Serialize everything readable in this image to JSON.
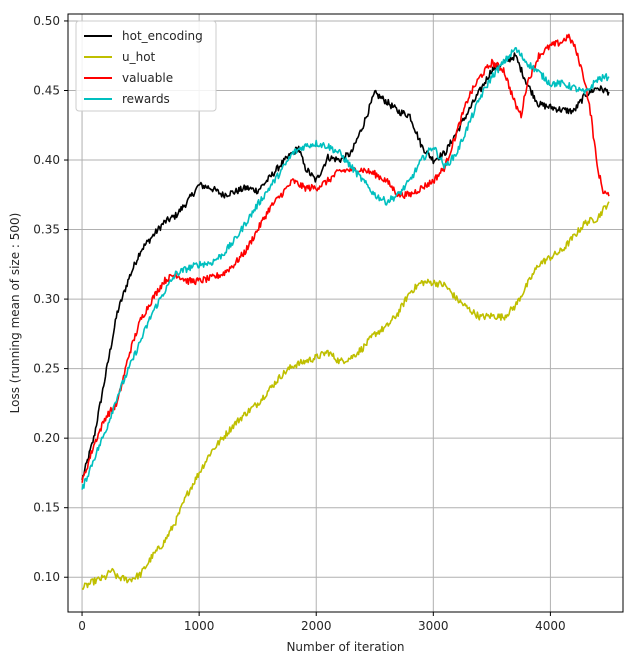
{
  "chart_data": {
    "type": "line",
    "title": "",
    "xlabel": "Number of iteration",
    "ylabel": "Loss (running mean of size : 500)",
    "xlim": [
      -120,
      4620
    ],
    "ylim": [
      0.075,
      0.505
    ],
    "xticks": [
      0,
      1000,
      2000,
      3000,
      4000
    ],
    "yticks": [
      0.1,
      0.15,
      0.2,
      0.25,
      0.3,
      0.35,
      0.4,
      0.45,
      0.5
    ],
    "grid": true,
    "legend_position": "top-left",
    "series": [
      {
        "name": "hot_encoding",
        "color": "#000000",
        "points": [
          [
            0,
            0.17
          ],
          [
            100,
            0.2
          ],
          [
            200,
            0.245
          ],
          [
            300,
            0.29
          ],
          [
            400,
            0.315
          ],
          [
            500,
            0.335
          ],
          [
            600,
            0.345
          ],
          [
            700,
            0.355
          ],
          [
            800,
            0.36
          ],
          [
            900,
            0.37
          ],
          [
            1000,
            0.382
          ],
          [
            1100,
            0.38
          ],
          [
            1200,
            0.375
          ],
          [
            1300,
            0.377
          ],
          [
            1400,
            0.38
          ],
          [
            1500,
            0.378
          ],
          [
            1600,
            0.387
          ],
          [
            1700,
            0.397
          ],
          [
            1800,
            0.405
          ],
          [
            1850,
            0.409
          ],
          [
            1900,
            0.395
          ],
          [
            2000,
            0.385
          ],
          [
            2100,
            0.402
          ],
          [
            2200,
            0.4
          ],
          [
            2300,
            0.405
          ],
          [
            2400,
            0.425
          ],
          [
            2500,
            0.448
          ],
          [
            2600,
            0.442
          ],
          [
            2700,
            0.435
          ],
          [
            2800,
            0.432
          ],
          [
            2900,
            0.41
          ],
          [
            3000,
            0.4
          ],
          [
            3100,
            0.405
          ],
          [
            3200,
            0.42
          ],
          [
            3300,
            0.435
          ],
          [
            3400,
            0.45
          ],
          [
            3500,
            0.465
          ],
          [
            3600,
            0.47
          ],
          [
            3700,
            0.475
          ],
          [
            3800,
            0.455
          ],
          [
            3900,
            0.44
          ],
          [
            4000,
            0.438
          ],
          [
            4100,
            0.436
          ],
          [
            4200,
            0.435
          ],
          [
            4300,
            0.447
          ],
          [
            4400,
            0.452
          ],
          [
            4500,
            0.449
          ]
        ]
      },
      {
        "name": "u_hot",
        "color": "#bfbf00",
        "points": [
          [
            0,
            0.092
          ],
          [
            100,
            0.097
          ],
          [
            200,
            0.1
          ],
          [
            250,
            0.105
          ],
          [
            300,
            0.1
          ],
          [
            400,
            0.098
          ],
          [
            500,
            0.102
          ],
          [
            600,
            0.115
          ],
          [
            700,
            0.125
          ],
          [
            800,
            0.14
          ],
          [
            900,
            0.16
          ],
          [
            1000,
            0.175
          ],
          [
            1100,
            0.19
          ],
          [
            1200,
            0.2
          ],
          [
            1300,
            0.21
          ],
          [
            1400,
            0.218
          ],
          [
            1500,
            0.225
          ],
          [
            1600,
            0.235
          ],
          [
            1700,
            0.245
          ],
          [
            1800,
            0.252
          ],
          [
            1900,
            0.255
          ],
          [
            2000,
            0.258
          ],
          [
            2100,
            0.262
          ],
          [
            2200,
            0.255
          ],
          [
            2300,
            0.258
          ],
          [
            2400,
            0.265
          ],
          [
            2500,
            0.275
          ],
          [
            2600,
            0.28
          ],
          [
            2700,
            0.29
          ],
          [
            2800,
            0.305
          ],
          [
            2900,
            0.312
          ],
          [
            3000,
            0.312
          ],
          [
            3100,
            0.31
          ],
          [
            3200,
            0.3
          ],
          [
            3300,
            0.293
          ],
          [
            3400,
            0.287
          ],
          [
            3500,
            0.288
          ],
          [
            3600,
            0.287
          ],
          [
            3700,
            0.295
          ],
          [
            3800,
            0.31
          ],
          [
            3900,
            0.325
          ],
          [
            4000,
            0.33
          ],
          [
            4100,
            0.335
          ],
          [
            4200,
            0.345
          ],
          [
            4300,
            0.355
          ],
          [
            4400,
            0.358
          ],
          [
            4500,
            0.37
          ]
        ]
      },
      {
        "name": "valuable",
        "color": "#ff0000",
        "points": [
          [
            0,
            0.168
          ],
          [
            100,
            0.195
          ],
          [
            200,
            0.215
          ],
          [
            300,
            0.225
          ],
          [
            400,
            0.26
          ],
          [
            500,
            0.285
          ],
          [
            600,
            0.3
          ],
          [
            700,
            0.313
          ],
          [
            800,
            0.318
          ],
          [
            900,
            0.313
          ],
          [
            1000,
            0.313
          ],
          [
            1100,
            0.315
          ],
          [
            1200,
            0.318
          ],
          [
            1300,
            0.325
          ],
          [
            1400,
            0.335
          ],
          [
            1500,
            0.35
          ],
          [
            1600,
            0.365
          ],
          [
            1700,
            0.375
          ],
          [
            1800,
            0.385
          ],
          [
            1900,
            0.38
          ],
          [
            2000,
            0.38
          ],
          [
            2100,
            0.385
          ],
          [
            2200,
            0.392
          ],
          [
            2300,
            0.393
          ],
          [
            2400,
            0.393
          ],
          [
            2500,
            0.39
          ],
          [
            2600,
            0.385
          ],
          [
            2700,
            0.375
          ],
          [
            2800,
            0.375
          ],
          [
            2900,
            0.38
          ],
          [
            3000,
            0.385
          ],
          [
            3100,
            0.395
          ],
          [
            3200,
            0.42
          ],
          [
            3300,
            0.445
          ],
          [
            3400,
            0.46
          ],
          [
            3500,
            0.47
          ],
          [
            3600,
            0.465
          ],
          [
            3700,
            0.44
          ],
          [
            3750,
            0.432
          ],
          [
            3800,
            0.455
          ],
          [
            3900,
            0.475
          ],
          [
            4000,
            0.482
          ],
          [
            4100,
            0.485
          ],
          [
            4150,
            0.489
          ],
          [
            4200,
            0.483
          ],
          [
            4250,
            0.47
          ],
          [
            4300,
            0.455
          ],
          [
            4350,
            0.43
          ],
          [
            4400,
            0.395
          ],
          [
            4450,
            0.378
          ],
          [
            4500,
            0.374
          ]
        ]
      },
      {
        "name": "rewards",
        "color": "#00bfbf",
        "points": [
          [
            0,
            0.163
          ],
          [
            100,
            0.185
          ],
          [
            200,
            0.205
          ],
          [
            300,
            0.23
          ],
          [
            400,
            0.25
          ],
          [
            500,
            0.27
          ],
          [
            600,
            0.29
          ],
          [
            700,
            0.305
          ],
          [
            800,
            0.318
          ],
          [
            900,
            0.322
          ],
          [
            1000,
            0.325
          ],
          [
            1100,
            0.326
          ],
          [
            1200,
            0.332
          ],
          [
            1300,
            0.342
          ],
          [
            1400,
            0.355
          ],
          [
            1500,
            0.368
          ],
          [
            1600,
            0.38
          ],
          [
            1700,
            0.392
          ],
          [
            1800,
            0.405
          ],
          [
            1900,
            0.41
          ],
          [
            2000,
            0.412
          ],
          [
            2100,
            0.41
          ],
          [
            2200,
            0.405
          ],
          [
            2300,
            0.395
          ],
          [
            2400,
            0.385
          ],
          [
            2500,
            0.375
          ],
          [
            2600,
            0.37
          ],
          [
            2700,
            0.375
          ],
          [
            2800,
            0.385
          ],
          [
            2900,
            0.4
          ],
          [
            3000,
            0.41
          ],
          [
            3100,
            0.395
          ],
          [
            3200,
            0.405
          ],
          [
            3300,
            0.425
          ],
          [
            3400,
            0.445
          ],
          [
            3500,
            0.46
          ],
          [
            3600,
            0.47
          ],
          [
            3700,
            0.48
          ],
          [
            3800,
            0.47
          ],
          [
            3900,
            0.463
          ],
          [
            4000,
            0.455
          ],
          [
            4100,
            0.455
          ],
          [
            4200,
            0.452
          ],
          [
            4300,
            0.448
          ],
          [
            4400,
            0.458
          ],
          [
            4500,
            0.46
          ]
        ]
      }
    ]
  }
}
